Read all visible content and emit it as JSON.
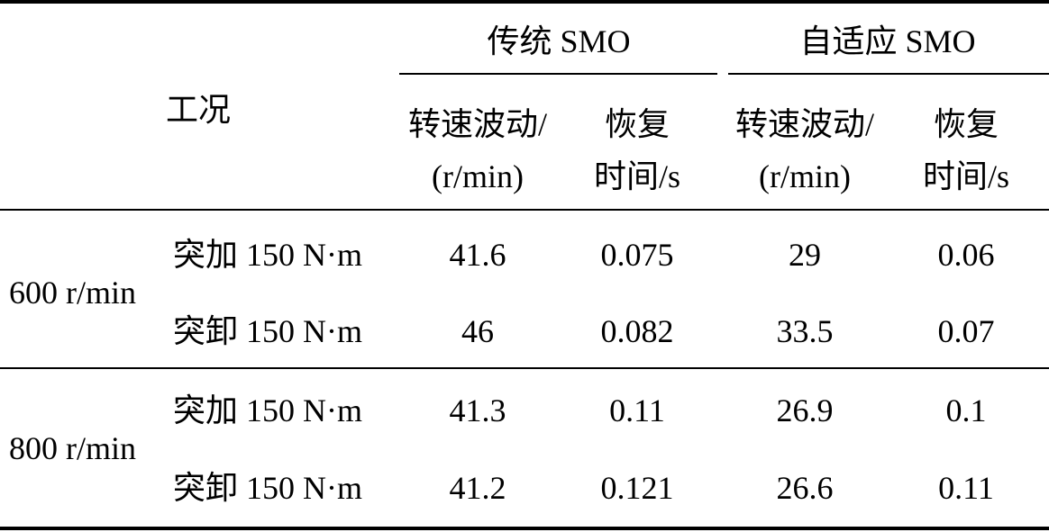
{
  "table": {
    "condition_header": "工况",
    "groups": [
      {
        "name": "传统 SMO",
        "columns": [
          [
            "转速波动/",
            "(r/min)"
          ],
          [
            "恢复",
            "时间/s"
          ]
        ]
      },
      {
        "name": "自适应 SMO",
        "columns": [
          [
            "转速波动/",
            "(r/min)"
          ],
          [
            "恢复",
            "时间/s"
          ]
        ]
      }
    ],
    "row_groups": [
      {
        "speed": "600 r/min",
        "rows": [
          {
            "load": "突加 150 N·m",
            "values": [
              "41.6",
              "0.075",
              "29",
              "0.06"
            ]
          },
          {
            "load": "突卸 150 N·m",
            "values": [
              "46",
              "0.082",
              "33.5",
              "0.07"
            ]
          }
        ]
      },
      {
        "speed": "800 r/min",
        "rows": [
          {
            "load": "突加 150 N·m",
            "values": [
              "41.3",
              "0.11",
              "26.9",
              "0.1"
            ]
          },
          {
            "load": "突卸 150 N·m",
            "values": [
              "41.2",
              "0.121",
              "26.6",
              "0.11"
            ]
          }
        ]
      }
    ]
  }
}
